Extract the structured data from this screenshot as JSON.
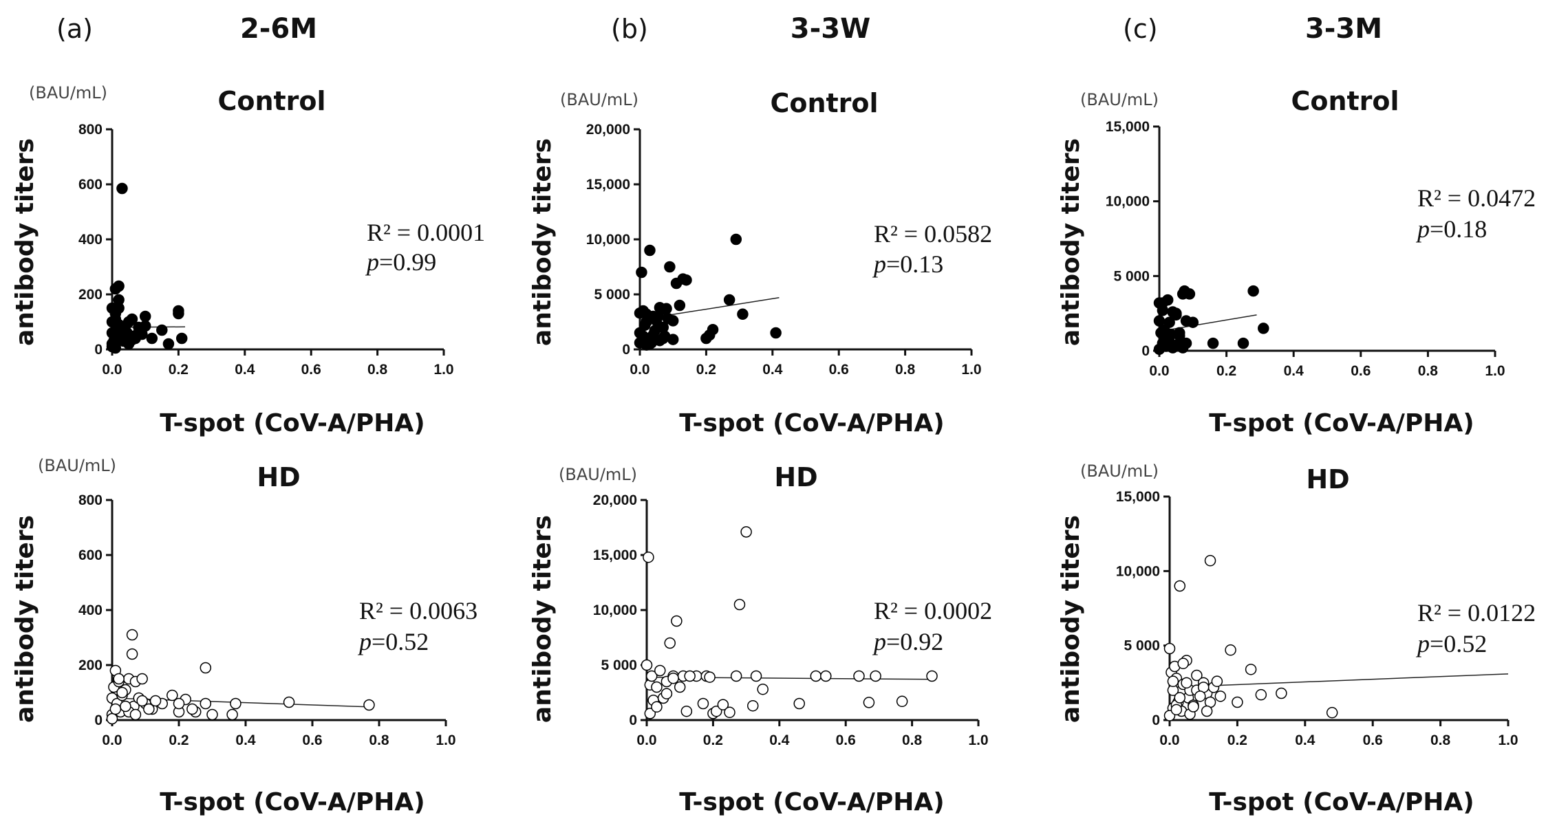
{
  "columns": [
    {
      "letter": "(a)",
      "group": "2-6M"
    },
    {
      "letter": "(b)",
      "group": "3-3W"
    },
    {
      "letter": "(c)",
      "group": "3-3M"
    }
  ],
  "chart_data": [
    {
      "type": "scatter",
      "panel": "a-control",
      "title": "Control",
      "xlabel": "T-spot (CoV-A/PHA)",
      "ylabel": "antibody titers",
      "unit": "(BAU/mL)",
      "xlim": [
        0,
        1.0
      ],
      "ylim": [
        0,
        800
      ],
      "xticks": [
        "0.0",
        "0.2",
        "0.4",
        "0.6",
        "0.8",
        "1.0"
      ],
      "yticks": [
        "0",
        "200",
        "400",
        "600",
        "800"
      ],
      "marker": "filled",
      "r2_label": "R² = 0.0001",
      "p_prefix": "p",
      "p_value": "=0.99",
      "fit": [
        [
          0.0,
          80
        ],
        [
          0.22,
          82
        ]
      ],
      "x": [
        0.0,
        0.0,
        0.0,
        0.005,
        0.01,
        0.01,
        0.015,
        0.02,
        0.02,
        0.025,
        0.03,
        0.03,
        0.035,
        0.04,
        0.045,
        0.05,
        0.06,
        0.07,
        0.08,
        0.09,
        0.1,
        0.1,
        0.12,
        0.15,
        0.17,
        0.2,
        0.2,
        0.21,
        0.0,
        0.01,
        0.02,
        0.03,
        0.04,
        0.05,
        0.06,
        0.07,
        0.01,
        0.02,
        0.0,
        0.015
      ],
      "y": [
        20,
        60,
        150,
        30,
        220,
        110,
        40,
        230,
        150,
        70,
        585,
        50,
        30,
        45,
        60,
        100,
        110,
        40,
        80,
        55,
        120,
        85,
        40,
        70,
        20,
        130,
        140,
        40,
        10,
        5,
        90,
        75,
        85,
        20,
        35,
        50,
        130,
        180,
        100,
        65
      ]
    },
    {
      "type": "scatter",
      "panel": "b-control",
      "title": "Control",
      "xlabel": "T-spot (CoV-A/PHA)",
      "ylabel": "antibody titers",
      "unit": "(BAU/mL)",
      "xlim": [
        0,
        1.0
      ],
      "ylim": [
        0,
        20000
      ],
      "xticks": [
        "0.0",
        "0.2",
        "0.4",
        "0.6",
        "0.8",
        "1.0"
      ],
      "yticks": [
        "0",
        "5 000",
        "10,000",
        "15,000",
        "20,000"
      ],
      "marker": "filled",
      "r2_label": "R² = 0.0582",
      "p_prefix": "p",
      "p_value": "=0.13",
      "fit": [
        [
          0.0,
          2700
        ],
        [
          0.42,
          4700
        ]
      ],
      "x": [
        0.0,
        0.005,
        0.01,
        0.01,
        0.02,
        0.02,
        0.03,
        0.03,
        0.04,
        0.04,
        0.05,
        0.06,
        0.06,
        0.07,
        0.07,
        0.08,
        0.09,
        0.1,
        0.11,
        0.12,
        0.13,
        0.14,
        0.2,
        0.21,
        0.22,
        0.27,
        0.29,
        0.31,
        0.41,
        0.0,
        0.015,
        0.025,
        0.035,
        0.045,
        0.055,
        0.065,
        0.075,
        0.085,
        0.1,
        0.0,
        0.02
      ],
      "y": [
        600,
        7000,
        3500,
        1200,
        2500,
        400,
        500,
        9000,
        3000,
        1300,
        2600,
        3800,
        800,
        1000,
        2000,
        3700,
        7500,
        2600,
        6000,
        4000,
        6400,
        6300,
        1000,
        1300,
        1800,
        4500,
        10000,
        3200,
        1500,
        3300,
        2200,
        900,
        600,
        1700,
        3000,
        3600,
        1200,
        2800,
        900,
        1500,
        3200
      ]
    },
    {
      "type": "scatter",
      "panel": "c-control",
      "title": "Control",
      "xlabel": "T-spot (CoV-A/PHA)",
      "ylabel": "antibody titers",
      "unit": "(BAU/mL)",
      "xlim": [
        0,
        1.0
      ],
      "ylim": [
        0,
        15000
      ],
      "xticks": [
        "0.0",
        "0.2",
        "0.4",
        "0.6",
        "0.8",
        "1.0"
      ],
      "yticks": [
        "0",
        "5 000",
        "10,000",
        "15,000"
      ],
      "marker": "filled",
      "r2_label": "R² = 0.0472",
      "p_prefix": "p",
      "p_value": "=0.18",
      "fit": [
        [
          0.0,
          1300
        ],
        [
          0.29,
          2400
        ]
      ],
      "x": [
        0.0,
        0.005,
        0.01,
        0.01,
        0.015,
        0.02,
        0.025,
        0.03,
        0.035,
        0.04,
        0.05,
        0.055,
        0.06,
        0.07,
        0.075,
        0.08,
        0.09,
        0.1,
        0.16,
        0.25,
        0.28,
        0.31,
        0.0,
        0.02,
        0.04,
        0.06,
        0.08,
        0.03,
        0.05,
        0.07,
        0.01,
        0.0
      ],
      "y": [
        3200,
        1200,
        500,
        2700,
        1400,
        300,
        3400,
        600,
        1100,
        2600,
        2500,
        400,
        1000,
        3800,
        4000,
        2000,
        3800,
        1900,
        500,
        500,
        4000,
        1500,
        2000,
        800,
        200,
        1200,
        500,
        1900,
        2400,
        200,
        3200,
        100
      ]
    },
    {
      "type": "scatter",
      "panel": "a-hd",
      "title": "HD",
      "xlabel": "T-spot (CoV-A/PHA)",
      "ylabel": "antibody titers",
      "unit": "(BAU/mL)",
      "xlim": [
        0,
        1.0
      ],
      "ylim": [
        0,
        800
      ],
      "xticks": [
        "0.0",
        "0.2",
        "0.4",
        "0.6",
        "0.8",
        "1.0"
      ],
      "yticks": [
        "0",
        "200",
        "400",
        "600",
        "800"
      ],
      "marker": "open",
      "r2_label": "R² = 0.0063",
      "p_prefix": "p",
      "p_value": "=0.52",
      "fit": [
        [
          0.0,
          80
        ],
        [
          0.77,
          48
        ]
      ],
      "x": [
        0.0,
        0.0,
        0.005,
        0.01,
        0.015,
        0.02,
        0.025,
        0.03,
        0.04,
        0.05,
        0.06,
        0.06,
        0.065,
        0.07,
        0.08,
        0.09,
        0.1,
        0.12,
        0.15,
        0.18,
        0.2,
        0.22,
        0.25,
        0.28,
        0.28,
        0.3,
        0.36,
        0.37,
        0.53,
        0.77,
        0.0,
        0.01,
        0.03,
        0.05,
        0.07,
        0.09,
        0.11,
        0.13,
        0.2,
        0.24,
        0.02,
        0.04
      ],
      "y": [
        20,
        80,
        120,
        180,
        60,
        140,
        30,
        90,
        110,
        150,
        310,
        240,
        50,
        140,
        80,
        150,
        60,
        40,
        60,
        90,
        30,
        75,
        30,
        190,
        60,
        20,
        20,
        60,
        65,
        55,
        5,
        40,
        100,
        30,
        20,
        70,
        40,
        70,
        60,
        40,
        150,
        50
      ]
    },
    {
      "type": "scatter",
      "panel": "b-hd",
      "title": "HD",
      "xlabel": "T-spot (CoV-A/PHA)",
      "ylabel": "antibody titers",
      "unit": "(BAU/mL)",
      "xlim": [
        0,
        1.0
      ],
      "ylim": [
        0,
        20000
      ],
      "xticks": [
        "0.0",
        "0.2",
        "0.4",
        "0.6",
        "0.8",
        "1.0"
      ],
      "yticks": [
        "0",
        "5 000",
        "10,000",
        "15,000",
        "20,000"
      ],
      "marker": "open",
      "r2_label": "R² = 0.0002",
      "p_prefix": "p",
      "p_value": "=0.92",
      "fit": [
        [
          0.0,
          3900
        ],
        [
          0.87,
          3700
        ]
      ],
      "x": [
        0.0,
        0.005,
        0.01,
        0.015,
        0.02,
        0.03,
        0.04,
        0.05,
        0.06,
        0.07,
        0.08,
        0.09,
        0.1,
        0.11,
        0.12,
        0.15,
        0.17,
        0.18,
        0.2,
        0.21,
        0.23,
        0.25,
        0.27,
        0.28,
        0.3,
        0.32,
        0.33,
        0.35,
        0.46,
        0.51,
        0.54,
        0.64,
        0.67,
        0.69,
        0.77,
        0.86,
        0.01,
        0.03,
        0.06,
        0.08,
        0.13,
        0.19
      ],
      "y": [
        5000,
        14800,
        3200,
        4000,
        1800,
        3000,
        4500,
        2000,
        3500,
        7000,
        4000,
        9000,
        3000,
        4000,
        800,
        4000,
        1500,
        4000,
        600,
        800,
        1400,
        700,
        4000,
        10500,
        17100,
        1300,
        4000,
        2800,
        1500,
        4000,
        4000,
        4000,
        1600,
        4000,
        1700,
        4000,
        600,
        1200,
        2400,
        3800,
        4000,
        3900
      ]
    },
    {
      "type": "scatter",
      "panel": "c-hd",
      "title": "HD",
      "xlabel": "T-spot (CoV-A/PHA)",
      "ylabel": "antibody titers",
      "unit": "(BAU/mL)",
      "xlim": [
        0,
        1.0
      ],
      "ylim": [
        0,
        15000
      ],
      "xticks": [
        "0.0",
        "0.2",
        "0.4",
        "0.6",
        "0.8",
        "1.0"
      ],
      "yticks": [
        "0",
        "5 000",
        "10,000",
        "15,000"
      ],
      "marker": "open",
      "r2_label": "R² = 0.0122",
      "p_prefix": "p",
      "p_value": "=0.52",
      "fit": [
        [
          0.0,
          2200
        ],
        [
          1.0,
          3100
        ]
      ],
      "x": [
        0.0,
        0.005,
        0.01,
        0.01,
        0.015,
        0.02,
        0.025,
        0.03,
        0.035,
        0.04,
        0.05,
        0.055,
        0.06,
        0.07,
        0.08,
        0.09,
        0.1,
        0.11,
        0.12,
        0.13,
        0.14,
        0.15,
        0.18,
        0.2,
        0.24,
        0.27,
        0.33,
        0.48,
        0.0,
        0.02,
        0.04,
        0.06,
        0.08,
        0.1,
        0.12,
        0.03,
        0.05,
        0.07,
        0.09,
        0.01,
        0.02,
        0.11
      ],
      "y": [
        4800,
        3200,
        800,
        2000,
        3600,
        2800,
        1200,
        9000,
        600,
        2400,
        4000,
        1500,
        2000,
        1000,
        3000,
        1800,
        2500,
        1800,
        10700,
        2200,
        2600,
        1600,
        4700,
        1200,
        3400,
        1700,
        1800,
        500,
        300,
        1000,
        3800,
        400,
        2000,
        2200,
        1200,
        1500,
        2500,
        900,
        1600,
        2600,
        700,
        600
      ]
    }
  ]
}
